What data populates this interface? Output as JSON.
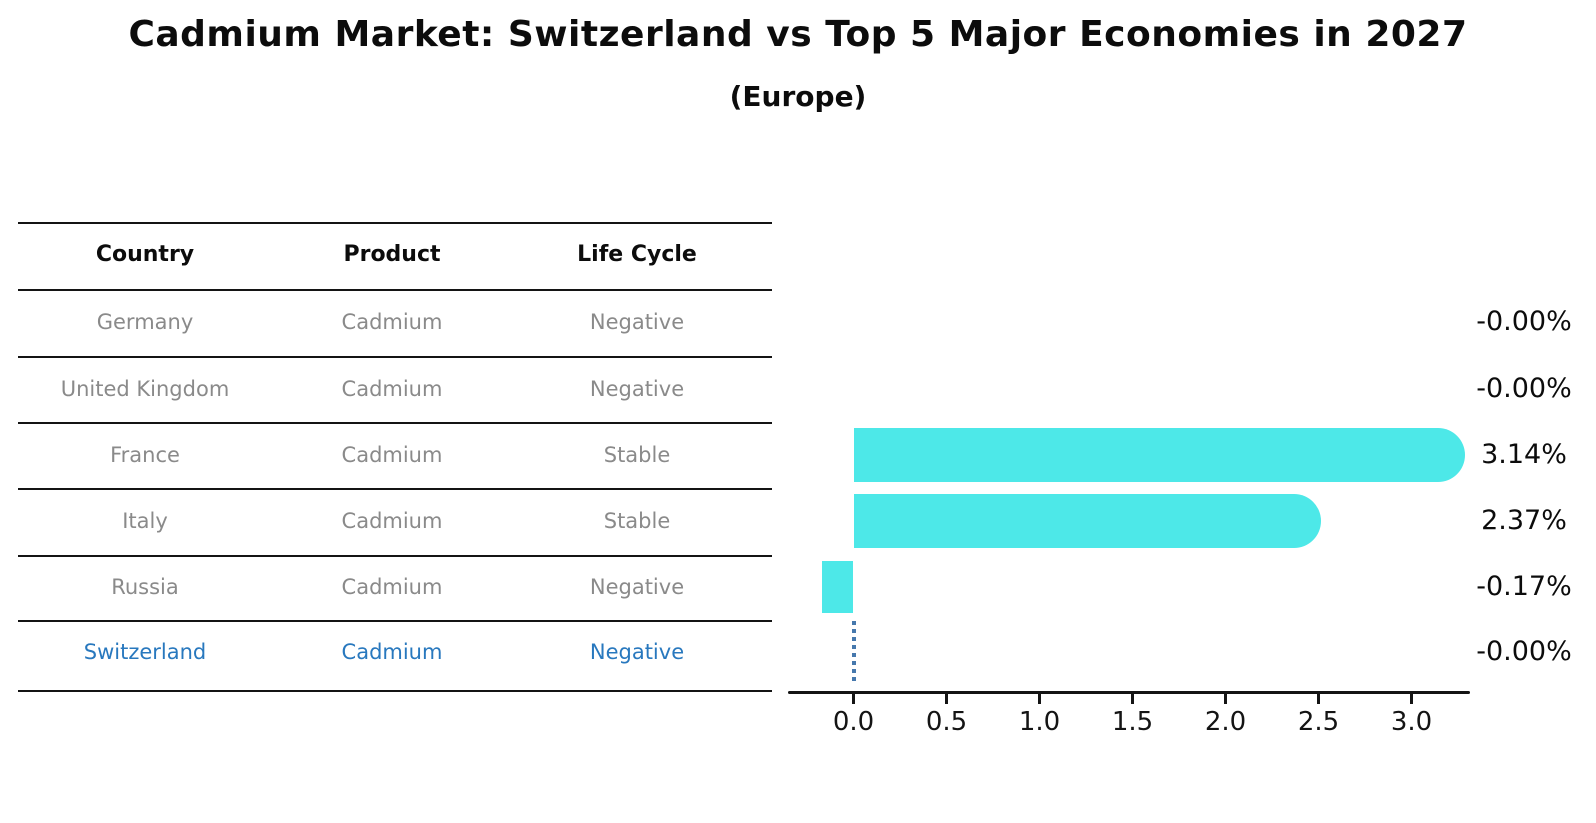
{
  "title": "Cadmium Market: Switzerland vs Top 5 Major Economies in 2027",
  "subtitle": "(Europe)",
  "table": {
    "headers": [
      "Country",
      "Product",
      "Life Cycle"
    ],
    "rows": [
      {
        "country": "Germany",
        "product": "Cadmium",
        "life_cycle": "Negative",
        "highlight": false
      },
      {
        "country": "United Kingdom",
        "product": "Cadmium",
        "life_cycle": "Negative",
        "highlight": false
      },
      {
        "country": "France",
        "product": "Cadmium",
        "life_cycle": "Stable",
        "highlight": false
      },
      {
        "country": "Italy",
        "product": "Cadmium",
        "life_cycle": "Stable",
        "highlight": false
      },
      {
        "country": "Russia",
        "product": "Cadmium",
        "life_cycle": "Negative",
        "highlight": false
      },
      {
        "country": "Switzerland",
        "product": "Cadmium",
        "life_cycle": "Negative",
        "highlight": true
      }
    ]
  },
  "chart_data": {
    "type": "bar",
    "orientation": "horizontal",
    "title": "Cadmium Market: Switzerland vs Top 5 Major Economies in 2027",
    "subtitle": "(Europe)",
    "categories": [
      "Germany",
      "United Kingdom",
      "France",
      "Italy",
      "Russia",
      "Switzerland"
    ],
    "values": [
      -0.0,
      -0.0,
      3.14,
      2.37,
      -0.17,
      -0.0
    ],
    "value_labels": [
      "-0.00%",
      "-0.00%",
      "3.14%",
      "2.37%",
      "-0.17%",
      "-0.00%"
    ],
    "x_tick_labels": [
      "0.0",
      "0.5",
      "1.0",
      "1.5",
      "2.0",
      "2.5",
      "3.0"
    ],
    "x_tick_values": [
      0.0,
      0.5,
      1.0,
      1.5,
      2.0,
      2.5,
      3.0
    ],
    "xlim": [
      -0.35,
      3.32
    ],
    "grid": false,
    "legend": false,
    "highlight_category": "Switzerland",
    "bar_color": "#4de8e8",
    "highlight_line_color": "#4678ad",
    "text_color": "#0c0c0c",
    "muted_text_color": "#8a8a8a",
    "highlight_text_color": "#2878be"
  }
}
